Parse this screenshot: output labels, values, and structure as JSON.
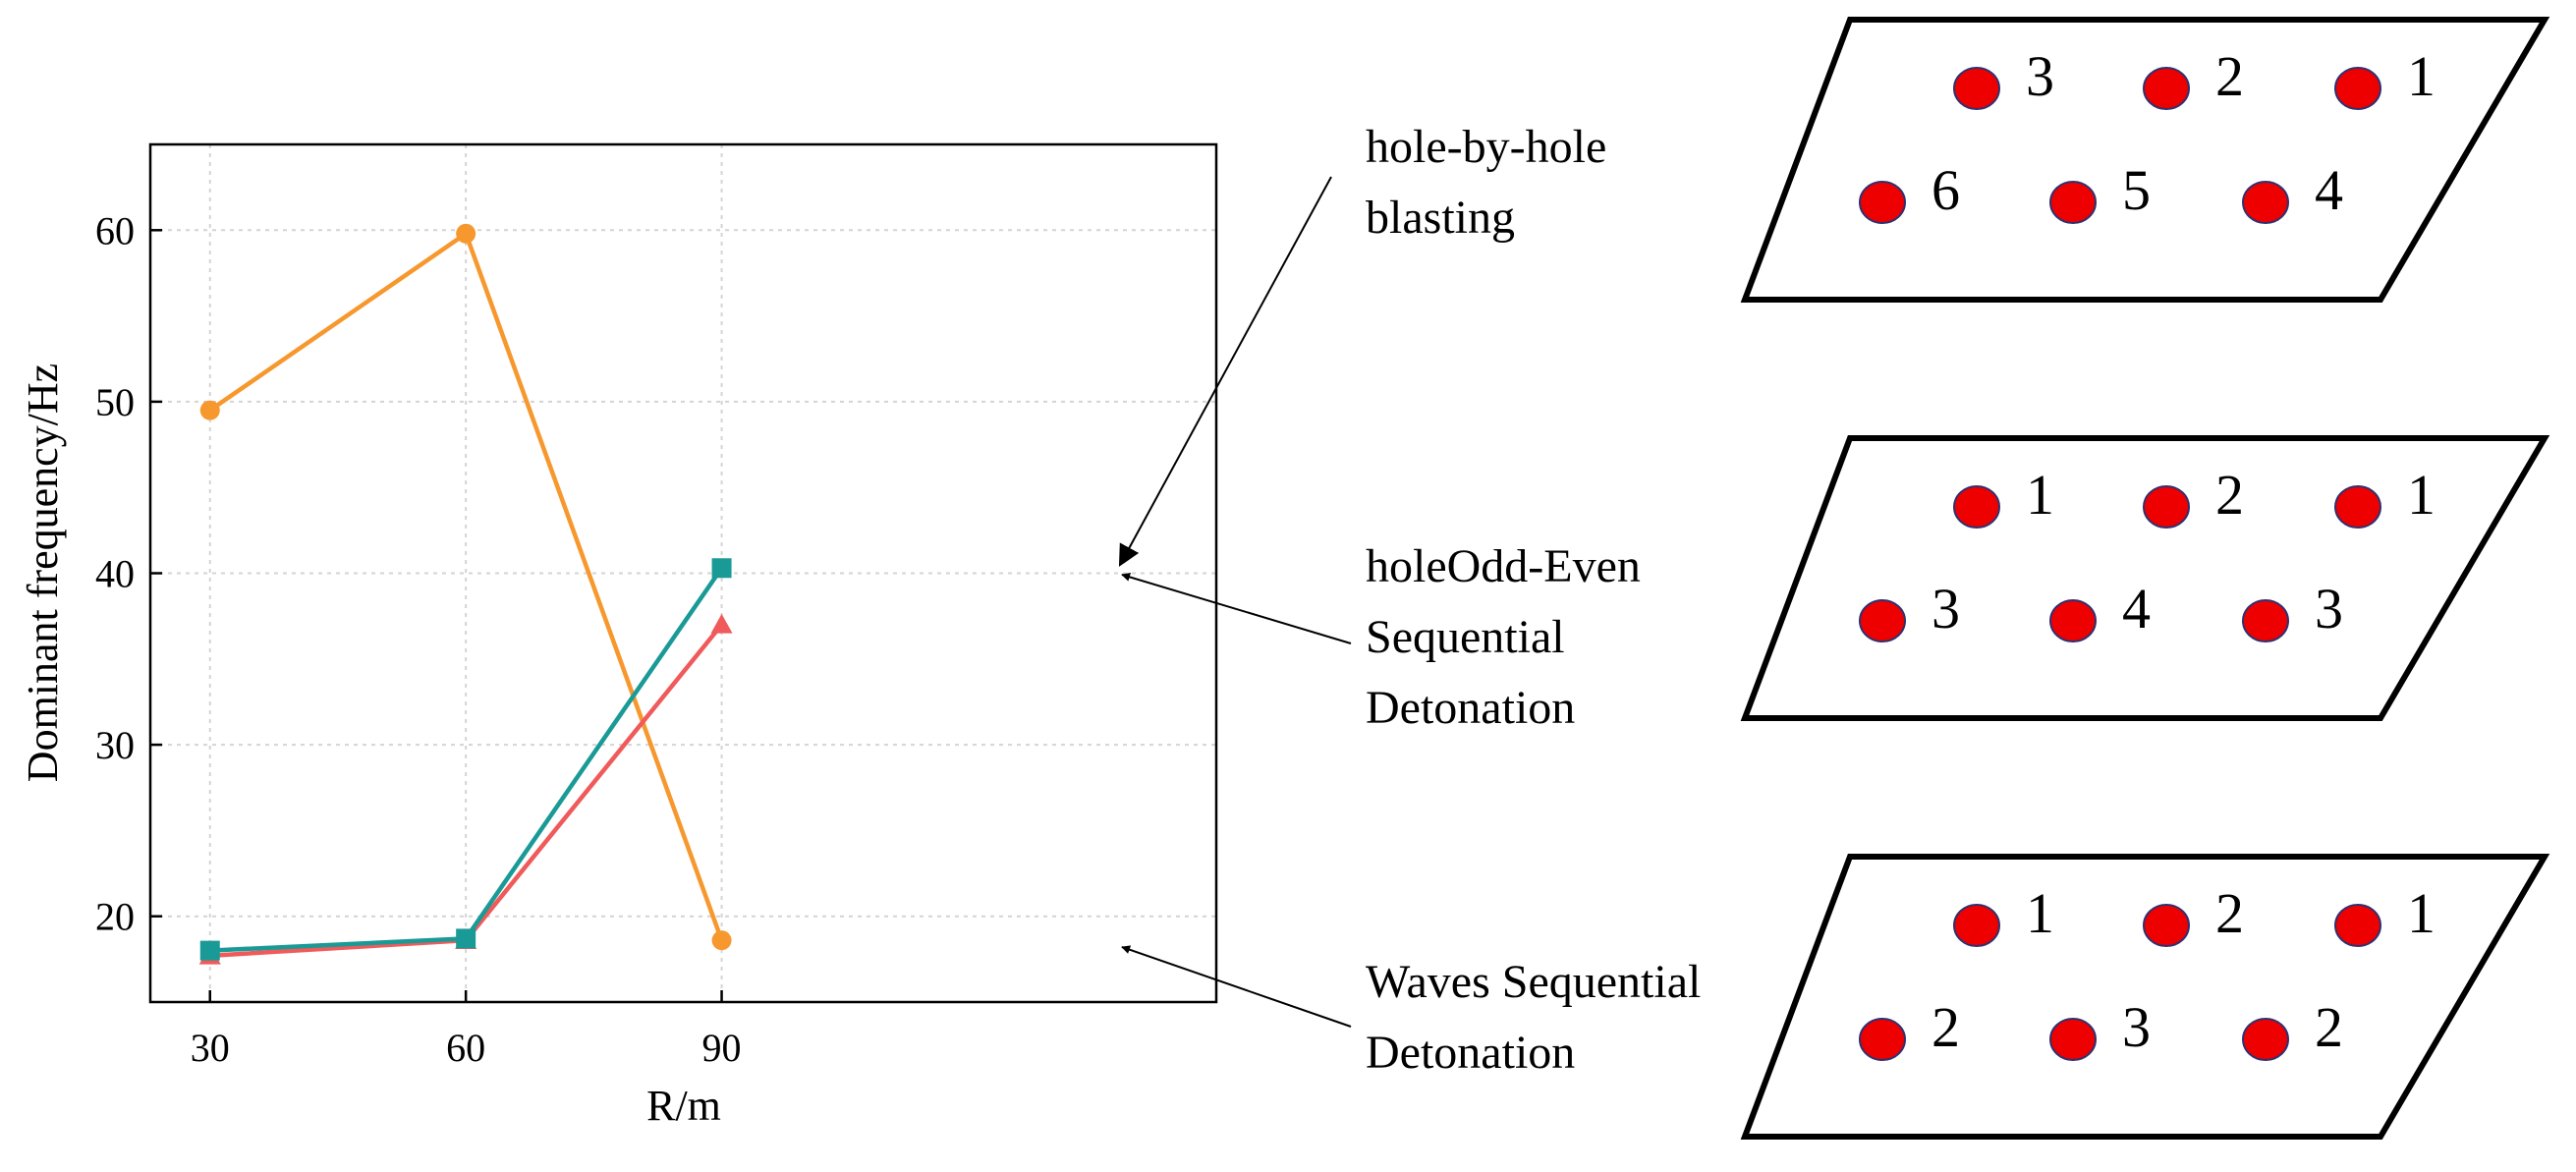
{
  "chart_data": {
    "type": "line",
    "title": "",
    "xlabel": "R/m",
    "ylabel": "Dominant frequency/Hz",
    "categories": [
      30,
      60,
      90
    ],
    "x_tick_labels": [
      "30",
      "60",
      "90"
    ],
    "y_tick_labels": [
      "20",
      "30",
      "40",
      "50",
      "60"
    ],
    "xlim": [
      23,
      148
    ],
    "ylim": [
      15,
      65
    ],
    "grid": true,
    "series": [
      {
        "name": "hole-by-hole blasting",
        "values": [
          18.0,
          18.7,
          40.3
        ],
        "color": "#1a9a96",
        "marker": "square"
      },
      {
        "name": "Odd-Even Sequential Detonation",
        "values": [
          17.7,
          18.6,
          37.0
        ],
        "color": "#f05a5a",
        "marker": "triangle"
      },
      {
        "name": "Waves Sequential Detonation",
        "values": [
          49.5,
          59.8,
          18.6
        ],
        "color": "#f7982e",
        "marker": "circle"
      }
    ],
    "annotations": [
      {
        "id": "hole-by-hole",
        "lines": [
          "hole-by-hole",
          "blasting"
        ],
        "target_series": 0,
        "target_index": 2
      },
      {
        "id": "odd-even",
        "lines": [
          "holeOdd-Even",
          "Sequential",
          "Detonation"
        ],
        "target_series": 1,
        "target_index": 2
      },
      {
        "id": "waves",
        "lines": [
          "Waves Sequential",
          "Detonation"
        ],
        "target_series": 2,
        "target_index": 2
      }
    ]
  },
  "diagrams": [
    {
      "name": "hole-by-hole",
      "top_row": [
        "3",
        "2",
        "1"
      ],
      "bottom_row": [
        "6",
        "5",
        "4"
      ]
    },
    {
      "name": "odd-even",
      "top_row": [
        "1",
        "2",
        "1"
      ],
      "bottom_row": [
        "3",
        "4",
        "3"
      ]
    },
    {
      "name": "waves",
      "top_row": [
        "1",
        "2",
        "1"
      ],
      "bottom_row": [
        "2",
        "3",
        "2"
      ]
    }
  ],
  "colors": {
    "hole_fill": "#ee0000",
    "hole_stroke": "#303070",
    "axis": "#000000",
    "grid": "#d4d4d4",
    "arrow": "#000000"
  }
}
